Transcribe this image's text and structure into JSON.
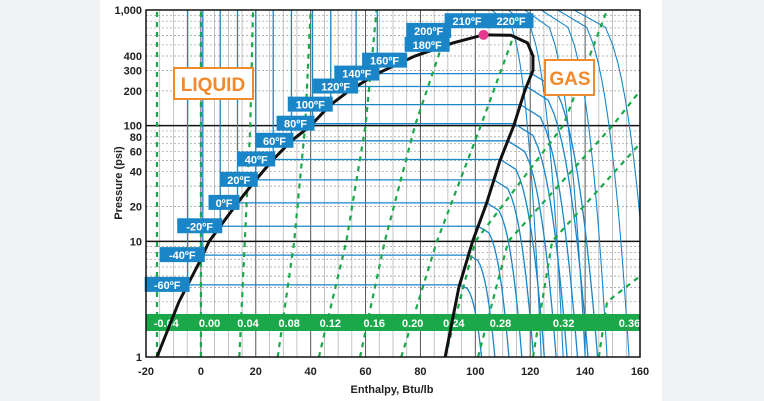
{
  "chart_data": {
    "type": "line",
    "title": "",
    "xlabel": "Enthalpy, Btu/lb",
    "ylabel": "Pressure (psi)",
    "xlim": [
      -20,
      160
    ],
    "ylim": [
      1,
      1000
    ],
    "yscale": "log",
    "grid": true,
    "x_ticks": [
      "-20",
      "0",
      "20",
      "40",
      "60",
      "80",
      "100",
      "120",
      "140",
      "160"
    ],
    "x_tick_values": [
      -20,
      0,
      20,
      40,
      60,
      80,
      100,
      120,
      140,
      160
    ],
    "y_ticks": [
      "1",
      "10",
      "20",
      "40",
      "60",
      "80",
      "100",
      "200",
      "300",
      "400",
      "1,000"
    ],
    "y_tick_values": [
      1,
      10,
      20,
      40,
      60,
      80,
      100,
      200,
      300,
      400,
      1000
    ],
    "region_labels": {
      "liquid": "LIQUID",
      "gas": "GAS"
    },
    "saturation_dome": {
      "liquid_line": [
        [
          -16,
          1
        ],
        [
          -8,
          3
        ],
        [
          0,
          7
        ],
        [
          3,
          10
        ],
        [
          13,
          21
        ],
        [
          20,
          34
        ],
        [
          26,
          50
        ],
        [
          33,
          74
        ],
        [
          40,
          100
        ],
        [
          47,
          150
        ],
        [
          54,
          200
        ],
        [
          64,
          280
        ],
        [
          78,
          400
        ],
        [
          92,
          520
        ],
        [
          103,
          610
        ]
      ],
      "vapor_line": [
        [
          103,
          610
        ],
        [
          113,
          605
        ],
        [
          119,
          520
        ],
        [
          121,
          400
        ],
        [
          121,
          300
        ],
        [
          118,
          200
        ],
        [
          114,
          100
        ],
        [
          109,
          50
        ],
        [
          104,
          21
        ],
        [
          99,
          10
        ],
        [
          94,
          4
        ],
        [
          89,
          1
        ]
      ]
    },
    "critical_point": {
      "h": 103,
      "p": 610,
      "color": "#e8388f"
    },
    "isotherms": [
      {
        "label": "-60ºF",
        "p": 4.2
      },
      {
        "label": "-40ºF",
        "p": 7.6
      },
      {
        "label": "-20ºF",
        "p": 13.5
      },
      {
        "label": "0ºF",
        "p": 21.5
      },
      {
        "label": "20ºF",
        "p": 34
      },
      {
        "label": "40ºF",
        "p": 51
      },
      {
        "label": "60ºF",
        "p": 74
      },
      {
        "label": "80ºF",
        "p": 104
      },
      {
        "label": "100ºF",
        "p": 152
      },
      {
        "label": "120ºF",
        "p": 218
      },
      {
        "label": "140ºF",
        "p": 282
      },
      {
        "label": "160ºF",
        "p": 365
      },
      {
        "label": "180ºF",
        "p": 500
      },
      {
        "label": "200ºF",
        "p": 660,
        "h": 83
      },
      {
        "label": "210ºF",
        "p": 800,
        "h": 97
      },
      {
        "label": "220ºF",
        "p": 800,
        "h": 113
      }
    ],
    "entropy_lines": [
      {
        "label": "-0.04",
        "points": [
          [
            -16,
            1
          ],
          [
            -16,
            1000
          ]
        ]
      },
      {
        "label": "0.00",
        "points": [
          [
            0,
            1
          ],
          [
            0,
            1000
          ]
        ]
      },
      {
        "label": "0.04",
        "points": [
          [
            14,
            1
          ],
          [
            16,
            10
          ],
          [
            18,
            100
          ],
          [
            19,
            1000
          ]
        ]
      },
      {
        "label": "0.08",
        "points": [
          [
            28,
            1
          ],
          [
            34,
            10
          ],
          [
            38,
            100
          ],
          [
            40,
            1000
          ]
        ]
      },
      {
        "label": "0.12",
        "points": [
          [
            43,
            1
          ],
          [
            53,
            10
          ],
          [
            60,
            100
          ],
          [
            64,
            1000
          ]
        ]
      },
      {
        "label": "0.16",
        "points": [
          [
            58,
            1
          ],
          [
            67,
            10
          ],
          [
            78,
            100
          ],
          [
            90,
            700
          ]
        ]
      },
      {
        "label": "0.20",
        "points": [
          [
            73,
            1
          ],
          [
            86,
            10
          ],
          [
            102,
            100
          ],
          [
            114,
            600
          ]
        ]
      },
      {
        "label": "0.24",
        "points": [
          [
            89,
            1
          ],
          [
            100,
            10
          ],
          [
            132,
            100
          ],
          [
            148,
            1000
          ]
        ]
      },
      {
        "label": "0.28",
        "points": [
          [
            101,
            1
          ],
          [
            112,
            10
          ],
          [
            150,
            100
          ],
          [
            160,
            200
          ]
        ]
      },
      {
        "label": "0.32",
        "points": [
          [
            121,
            1
          ],
          [
            128,
            10
          ],
          [
            160,
            70
          ]
        ]
      },
      {
        "label": "0.36",
        "points": [
          [
            145,
            1
          ],
          [
            148,
            3
          ],
          [
            160,
            5
          ]
        ]
      }
    ],
    "entropy_label_positions_h": [
      -15,
      0,
      14,
      29,
      44,
      60,
      74,
      89,
      106,
      129,
      153
    ],
    "colors": {
      "isotherm": "#1a86c8",
      "entropy": "#1aa84a",
      "dome": "#111111",
      "region_label": "#f08a2c"
    }
  }
}
